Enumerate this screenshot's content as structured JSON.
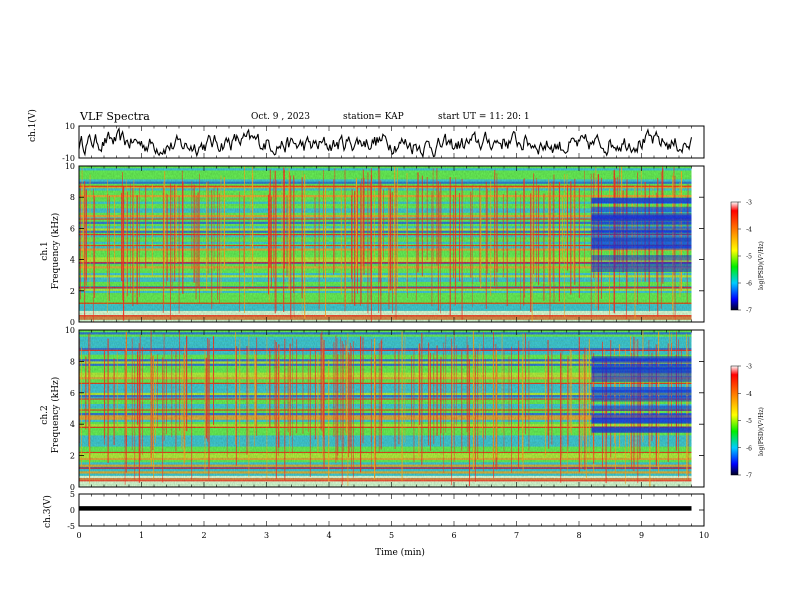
{
  "header": {
    "title": "VLF Spectra",
    "date": "Oct. 9 , 2023",
    "station": "station= KAP",
    "start": "start UT = 11: 20: 1"
  },
  "colors": {
    "spectrogram_base": "#66ee55",
    "spectrogram_low": "#2255ff",
    "spectrogram_high": "#ff3322",
    "waveform": "#000000"
  },
  "chart_data": [
    {
      "type": "line",
      "name": "ch1-waveform",
      "ylabel": "ch.1(V)",
      "ylim": [
        -10,
        10
      ],
      "yticks": [
        "10",
        "-10"
      ],
      "xlim": [
        0,
        10
      ]
    },
    {
      "type": "heatmap",
      "name": "ch1-spectrogram",
      "ylabel": "ch.1\nFrequency (kHz)",
      "ylim": [
        0,
        10
      ],
      "yticks": [
        "0",
        "2",
        "4",
        "6",
        "8",
        "10"
      ],
      "xlim": [
        0,
        10
      ],
      "colorbar": {
        "label": "log(PSD)(V²/Hz)",
        "range": [
          -7,
          -3
        ],
        "ticks": [
          "-3",
          "-4",
          "-5",
          "-6",
          "-7"
        ]
      }
    },
    {
      "type": "heatmap",
      "name": "ch2-spectrogram",
      "ylabel": "ch.2\nFrequency (kHz)",
      "ylim": [
        0,
        10
      ],
      "yticks": [
        "0",
        "2",
        "4",
        "6",
        "8",
        "10"
      ],
      "xlim": [
        0,
        10
      ],
      "colorbar": {
        "label": "log(PSD)(V²/Hz)",
        "range": [
          -7,
          -3
        ],
        "ticks": [
          "-3",
          "-4",
          "-5",
          "-6",
          "-7"
        ]
      }
    },
    {
      "type": "line",
      "name": "ch3-waveform",
      "ylabel": "ch.3(V)",
      "ylim": [
        -5,
        5
      ],
      "yticks": [
        "5",
        "0",
        "-5"
      ],
      "xlim": [
        0,
        10
      ],
      "xlabel": "Time (min)",
      "xticks": [
        "0",
        "1",
        "2",
        "3",
        "4",
        "5",
        "6",
        "7",
        "8",
        "9",
        "10"
      ]
    }
  ]
}
